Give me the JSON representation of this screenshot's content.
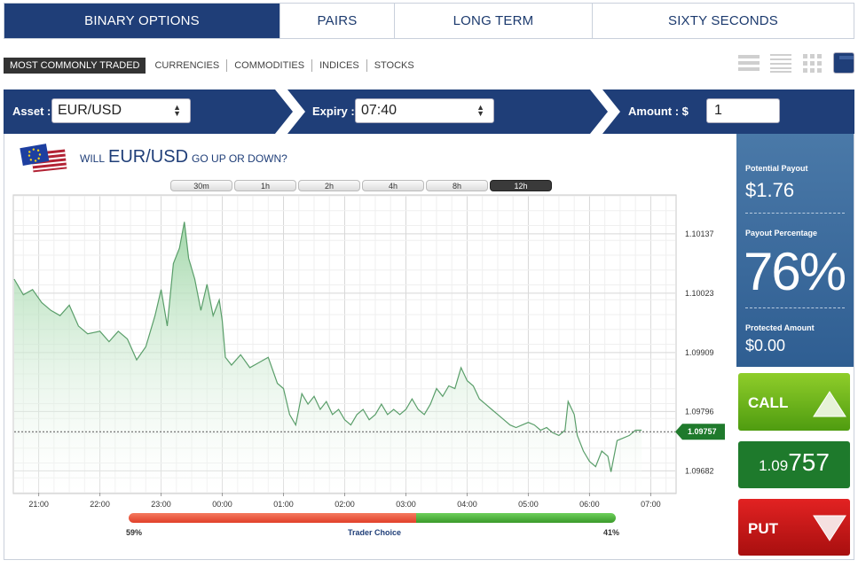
{
  "tabs": [
    {
      "label": "BINARY OPTIONS",
      "active": true
    },
    {
      "label": "PAIRS",
      "active": false
    },
    {
      "label": "LONG TERM",
      "active": false
    },
    {
      "label": "SIXTY SECONDS",
      "active": false
    }
  ],
  "categories": [
    {
      "label": "MOST COMMONLY TRADED",
      "active": true
    },
    {
      "label": "CURRENCIES",
      "active": false
    },
    {
      "label": "COMMODITIES",
      "active": false
    },
    {
      "label": "INDICES",
      "active": false
    },
    {
      "label": "STOCKS",
      "active": false
    }
  ],
  "view_icons": [
    "list-view-icon",
    "compact-list-icon",
    "grid-view-icon",
    "chart-view-icon"
  ],
  "controls": {
    "asset_label": "Asset :",
    "asset_value": "EUR/USD",
    "expiry_label": "Expiry :",
    "expiry_value": "07:40",
    "amount_label": "Amount : $",
    "amount_value": "1"
  },
  "question": {
    "prefix": "WILL",
    "asset": "EUR/USD",
    "suffix": "GO UP OR DOWN?",
    "flag_icon": "eu-us-flag-icon"
  },
  "timeframes": [
    {
      "label": "30m",
      "active": false
    },
    {
      "label": "1h",
      "active": false
    },
    {
      "label": "2h",
      "active": false
    },
    {
      "label": "4h",
      "active": false
    },
    {
      "label": "8h",
      "active": false
    },
    {
      "label": "12h",
      "active": true
    }
  ],
  "payout": {
    "potential_label": "Potential Payout",
    "potential_value": "$1.76",
    "percentage_label": "Payout Percentage",
    "percentage_value": "76%",
    "protected_label": "Protected Amount",
    "protected_value": "$0.00"
  },
  "buttons": {
    "call_label": "CALL",
    "price_small": "1.09",
    "price_big": "757",
    "put_label": "PUT"
  },
  "trader_choice": {
    "label": "Trader Choice",
    "put_pct_text": "59%",
    "call_pct_text": "41%",
    "put_fraction": 0.59,
    "call_fraction": 0.41
  },
  "colors": {
    "navy": "#1f3e78",
    "call_green": "#6cb61c",
    "put_red": "#cc1a1a",
    "line_green": "#5a9e6a",
    "marker_green": "#1f7a2c"
  },
  "chart_data": {
    "type": "area",
    "x_tick_labels": [
      "21:00",
      "22:00",
      "23:00",
      "00:00",
      "01:00",
      "02:00",
      "03:00",
      "04:00",
      "05:00",
      "06:00",
      "07:00"
    ],
    "y_tick_labels": [
      "1.10137",
      "1.10023",
      "1.09909",
      "1.09796",
      "1.09682"
    ],
    "y_ticks": [
      1.10137,
      1.10023,
      1.09909,
      1.09796,
      1.09682
    ],
    "ylim": [
      1.0964,
      1.1021
    ],
    "current_value": 1.09757,
    "current_label": "1.09757",
    "x_start": 20.6,
    "x_end": 31.4,
    "series": [
      {
        "values": [
          [
            20.6,
            1.1005
          ],
          [
            20.75,
            1.1002
          ],
          [
            20.9,
            1.1003
          ],
          [
            21.05,
            1.10005
          ],
          [
            21.2,
            1.0999
          ],
          [
            21.35,
            1.0998
          ],
          [
            21.5,
            1.1
          ],
          [
            21.65,
            1.0996
          ],
          [
            21.8,
            1.09945
          ],
          [
            22.0,
            1.0995
          ],
          [
            22.15,
            1.0993
          ],
          [
            22.3,
            1.0995
          ],
          [
            22.45,
            1.09935
          ],
          [
            22.6,
            1.09895
          ],
          [
            22.75,
            1.0992
          ],
          [
            22.9,
            1.0998
          ],
          [
            23.0,
            1.1003
          ],
          [
            23.1,
            1.0996
          ],
          [
            23.2,
            1.1008
          ],
          [
            23.3,
            1.1011
          ],
          [
            23.38,
            1.1016
          ],
          [
            23.45,
            1.1009
          ],
          [
            23.55,
            1.1005
          ],
          [
            23.65,
            1.0999
          ],
          [
            23.75,
            1.1004
          ],
          [
            23.85,
            1.0998
          ],
          [
            23.95,
            1.1001
          ],
          [
            24.0,
            1.0997
          ],
          [
            24.05,
            1.099
          ],
          [
            24.15,
            1.09885
          ],
          [
            24.3,
            1.09905
          ],
          [
            24.45,
            1.0988
          ],
          [
            24.6,
            1.0989
          ],
          [
            24.75,
            1.099
          ],
          [
            24.9,
            1.0985
          ],
          [
            25.0,
            1.0984
          ],
          [
            25.1,
            1.0979
          ],
          [
            25.2,
            1.0977
          ],
          [
            25.3,
            1.0983
          ],
          [
            25.4,
            1.0981
          ],
          [
            25.5,
            1.09825
          ],
          [
            25.6,
            1.098
          ],
          [
            25.7,
            1.09815
          ],
          [
            25.8,
            1.0979
          ],
          [
            25.9,
            1.098
          ],
          [
            26.0,
            1.0978
          ],
          [
            26.1,
            1.0977
          ],
          [
            26.2,
            1.0979
          ],
          [
            26.3,
            1.098
          ],
          [
            26.4,
            1.0978
          ],
          [
            26.5,
            1.0979
          ],
          [
            26.6,
            1.0981
          ],
          [
            26.7,
            1.0979
          ],
          [
            26.8,
            1.098
          ],
          [
            26.9,
            1.0979
          ],
          [
            27.0,
            1.098
          ],
          [
            27.1,
            1.0982
          ],
          [
            27.2,
            1.098
          ],
          [
            27.3,
            1.0979
          ],
          [
            27.4,
            1.0981
          ],
          [
            27.5,
            1.0984
          ],
          [
            27.6,
            1.09825
          ],
          [
            27.7,
            1.09845
          ],
          [
            27.8,
            1.0984
          ],
          [
            27.9,
            1.0988
          ],
          [
            28.0,
            1.09855
          ],
          [
            28.1,
            1.09845
          ],
          [
            28.2,
            1.0982
          ],
          [
            28.3,
            1.0981
          ],
          [
            28.4,
            1.098
          ],
          [
            28.5,
            1.0979
          ],
          [
            28.6,
            1.0978
          ],
          [
            28.7,
            1.0977
          ],
          [
            28.8,
            1.09765
          ],
          [
            28.9,
            1.0977
          ],
          [
            29.0,
            1.09775
          ],
          [
            29.1,
            1.0977
          ],
          [
            29.2,
            1.0976
          ],
          [
            29.3,
            1.09765
          ],
          [
            29.4,
            1.09755
          ],
          [
            29.5,
            1.0975
          ],
          [
            29.6,
            1.0976
          ],
          [
            29.65,
            1.09815
          ],
          [
            29.75,
            1.0979
          ],
          [
            29.8,
            1.0975
          ],
          [
            29.9,
            1.0972
          ],
          [
            30.0,
            1.097
          ],
          [
            30.1,
            1.0969
          ],
          [
            30.2,
            1.0972
          ],
          [
            30.3,
            1.0971
          ],
          [
            30.35,
            1.0968
          ],
          [
            30.45,
            1.0974
          ],
          [
            30.55,
            1.09745
          ],
          [
            30.65,
            1.0975
          ],
          [
            30.75,
            1.0976
          ],
          [
            30.85,
            1.0976
          ]
        ]
      }
    ]
  }
}
